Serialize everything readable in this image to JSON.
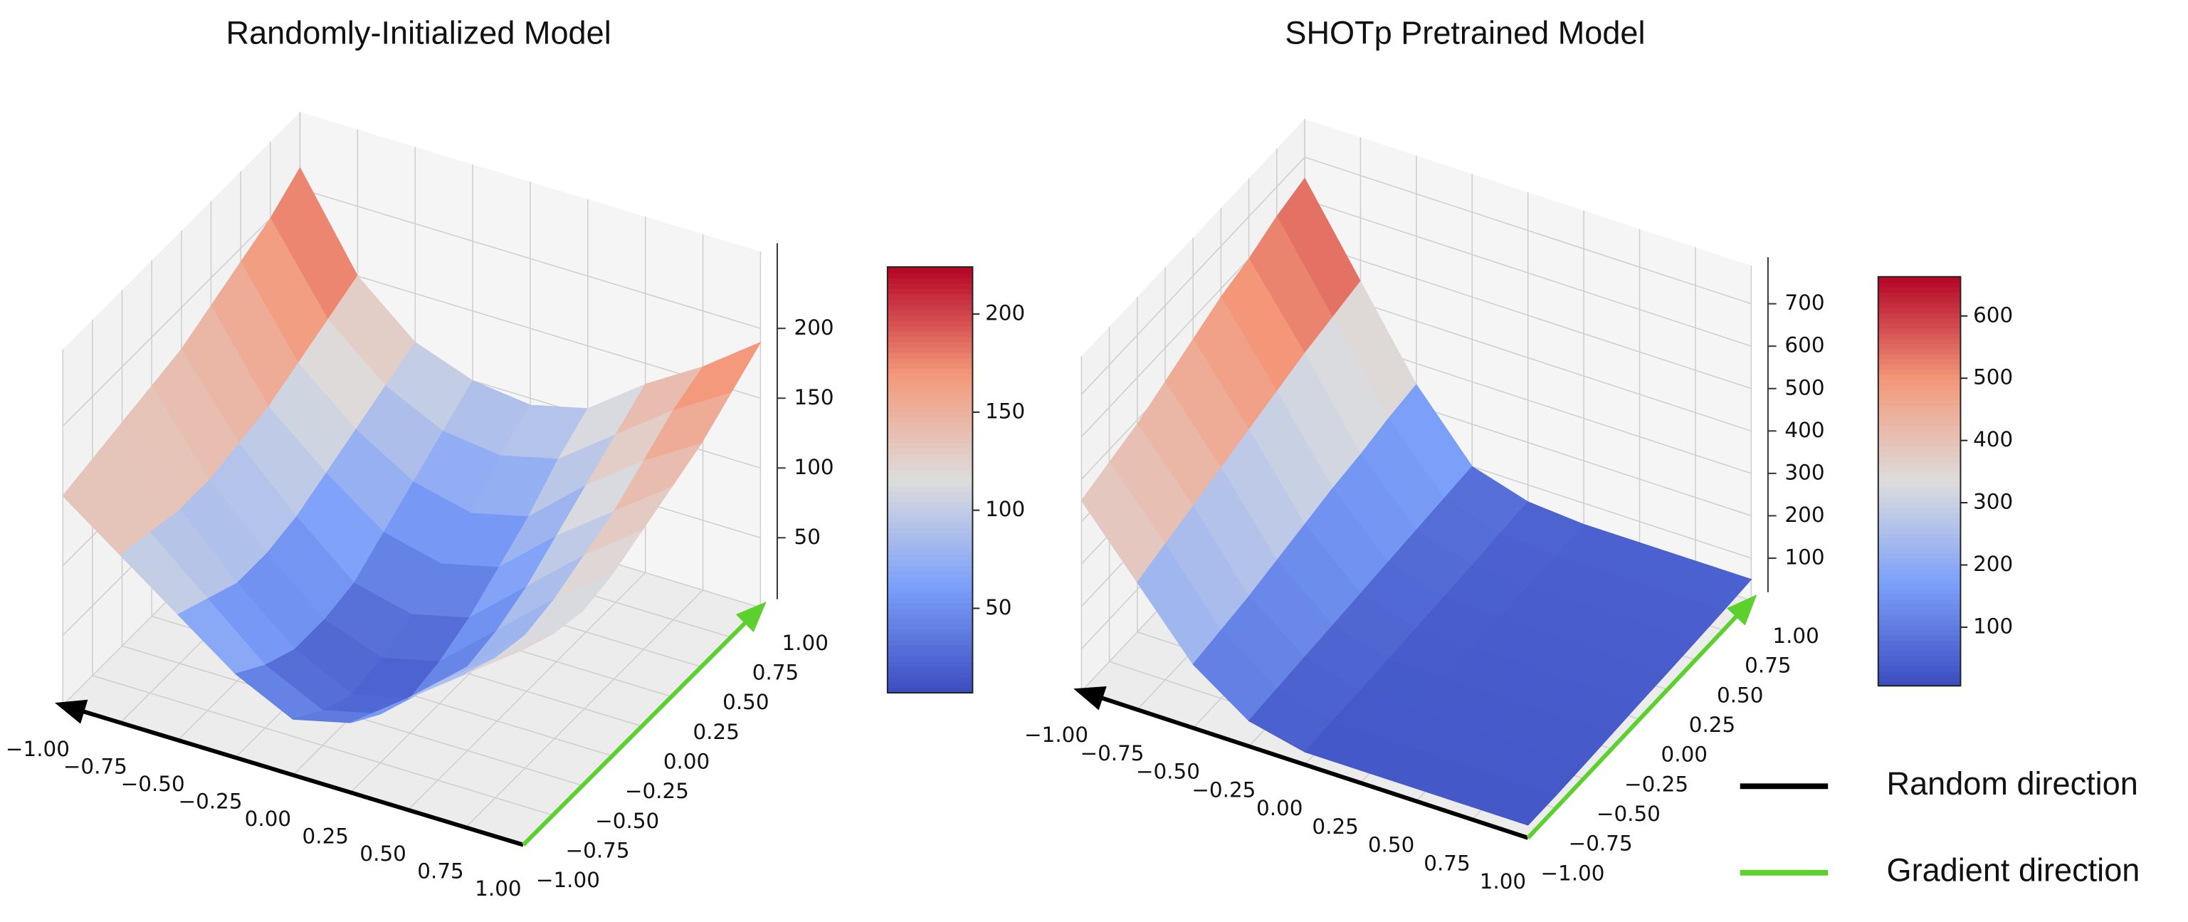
{
  "chart_data": [
    {
      "type": "surface",
      "title": "Randomly-Initialized Model",
      "xlim": [
        -1,
        1
      ],
      "ylim": [
        -1,
        1
      ],
      "zlim": [
        0,
        255
      ],
      "xticks": [
        {
          "value": -1,
          "label": "−1.00"
        },
        {
          "value": -0.75,
          "label": "−0.75"
        },
        {
          "value": -0.5,
          "label": "−0.50"
        },
        {
          "value": -0.25,
          "label": "−0.25"
        },
        {
          "value": 0,
          "label": "0.00"
        },
        {
          "value": 0.25,
          "label": "0.25"
        },
        {
          "value": 0.5,
          "label": "0.50"
        },
        {
          "value": 0.75,
          "label": "0.75"
        },
        {
          "value": 1,
          "label": "1.00"
        }
      ],
      "yticks": [
        {
          "value": -1,
          "label": "−1.00"
        },
        {
          "value": -0.75,
          "label": "−0.75"
        },
        {
          "value": -0.5,
          "label": "−0.50"
        },
        {
          "value": -0.25,
          "label": "−0.25"
        },
        {
          "value": 0,
          "label": "0.00"
        },
        {
          "value": 0.25,
          "label": "0.25"
        },
        {
          "value": 0.5,
          "label": "0.50"
        },
        {
          "value": 0.75,
          "label": "0.75"
        },
        {
          "value": 1,
          "label": "1.00"
        }
      ],
      "zticks": [
        50,
        100,
        150,
        200
      ],
      "x": [
        -1,
        -0.75,
        -0.5,
        -0.25,
        0,
        0.25,
        0.5,
        0.75,
        1
      ],
      "y": [
        -1,
        -0.75,
        -0.5,
        -0.25,
        0,
        0.25,
        0.5,
        0.75,
        1
      ],
      "z": [
        [
          150,
          120,
          90,
          60,
          40,
          50,
          80,
          110,
          140
        ],
        [
          155,
          115,
          80,
          45,
          25,
          35,
          70,
          100,
          130
        ],
        [
          160,
          110,
          70,
          35,
          15,
          25,
          60,
          95,
          125
        ],
        [
          165,
          110,
          70,
          35,
          20,
          30,
          65,
          100,
          130
        ],
        [
          170,
          115,
          75,
          40,
          30,
          40,
          75,
          110,
          140
        ],
        [
          180,
          120,
          85,
          55,
          45,
          55,
          90,
          120,
          150
        ],
        [
          190,
          130,
          95,
          70,
          60,
          70,
          105,
          135,
          160
        ],
        [
          200,
          140,
          105,
          85,
          80,
          90,
          120,
          150,
          175
        ],
        [
          215,
          150,
          115,
          100,
          95,
          105,
          135,
          160,
          190
        ]
      ],
      "colormap": "coolwarm",
      "clim": [
        7,
        224
      ],
      "cticks": [
        50,
        100,
        150,
        200
      ]
    },
    {
      "type": "surface",
      "title": "SHOTp Pretrained Model",
      "xlim": [
        -1,
        1
      ],
      "ylim": [
        -1,
        1
      ],
      "zlim": [
        0,
        790
      ],
      "xticks": [
        {
          "value": -1,
          "label": "−1.00"
        },
        {
          "value": -0.75,
          "label": "−0.75"
        },
        {
          "value": -0.5,
          "label": "−0.50"
        },
        {
          "value": -0.25,
          "label": "−0.25"
        },
        {
          "value": 0,
          "label": "0.00"
        },
        {
          "value": 0.25,
          "label": "0.25"
        },
        {
          "value": 0.5,
          "label": "0.50"
        },
        {
          "value": 0.75,
          "label": "0.75"
        },
        {
          "value": 1,
          "label": "1.00"
        }
      ],
      "yticks": [
        {
          "value": -1,
          "label": "−1.00"
        },
        {
          "value": -0.75,
          "label": "−0.75"
        },
        {
          "value": -0.5,
          "label": "−0.50"
        },
        {
          "value": -0.25,
          "label": "−0.25"
        },
        {
          "value": 0,
          "label": "0.00"
        },
        {
          "value": 0.25,
          "label": "0.25"
        },
        {
          "value": 0.5,
          "label": "0.50"
        },
        {
          "value": 0.75,
          "label": "0.75"
        },
        {
          "value": 1,
          "label": "1.00"
        }
      ],
      "zticks": [
        100,
        200,
        300,
        400,
        500,
        600,
        700
      ],
      "x": [
        -1,
        -0.75,
        -0.5,
        -0.25,
        0,
        0.25,
        0.5,
        0.75,
        1
      ],
      "y": [
        -1,
        -0.75,
        -0.5,
        -0.25,
        0,
        0.25,
        0.5,
        0.75,
        1
      ],
      "z": [
        [
          450,
          300,
          150,
          60,
          30,
          30,
          30,
          30,
          30
        ],
        [
          470,
          320,
          160,
          65,
          32,
          30,
          30,
          30,
          30
        ],
        [
          490,
          340,
          170,
          70,
          35,
          32,
          32,
          32,
          32
        ],
        [
          520,
          360,
          185,
          75,
          38,
          35,
          35,
          35,
          35
        ],
        [
          550,
          380,
          200,
          80,
          42,
          38,
          38,
          38,
          38
        ],
        [
          580,
          400,
          215,
          85,
          46,
          40,
          40,
          40,
          40
        ],
        [
          600,
          420,
          225,
          90,
          50,
          43,
          43,
          43,
          43
        ],
        [
          630,
          435,
          240,
          95,
          55,
          46,
          46,
          46,
          46
        ],
        [
          650,
          450,
          250,
          100,
          60,
          50,
          50,
          50,
          50
        ]
      ],
      "colormap": "coolwarm",
      "clim": [
        6,
        663
      ],
      "cticks": [
        100,
        200,
        300,
        400,
        500,
        600
      ]
    }
  ],
  "legend": [
    {
      "name": "Random direction",
      "color": "#000000"
    },
    {
      "name": "Gradient direction",
      "color": "#5cd12e"
    }
  ]
}
